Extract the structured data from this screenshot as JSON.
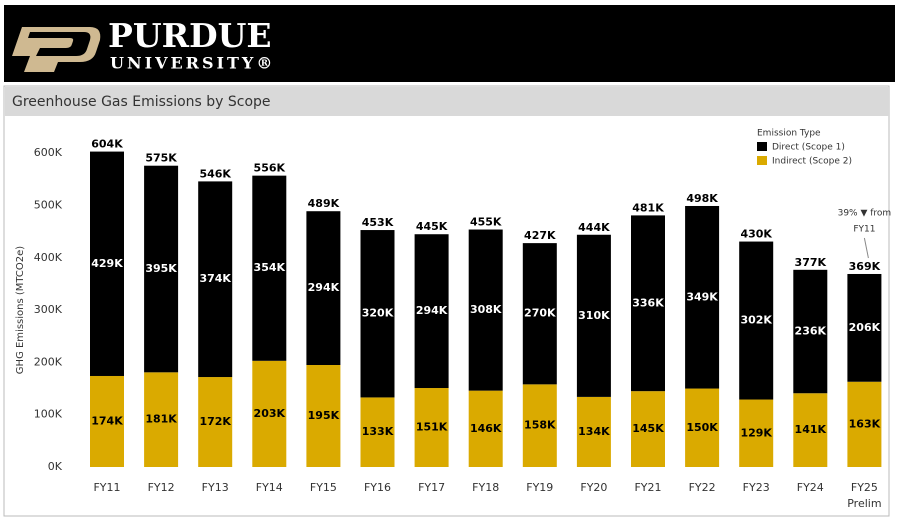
{
  "header": {
    "name": "PURDUE",
    "sub": "UNIVERSITY®"
  },
  "chart_data": {
    "type": "bar",
    "stacked": true,
    "title": "Greenhouse Gas Emissions by Scope",
    "y_label": "GHG Emissions (MTCO2e)",
    "legend_title": "Emission Type",
    "categories": [
      "FY11",
      "FY12",
      "FY13",
      "FY14",
      "FY15",
      "FY16",
      "FY17",
      "FY18",
      "FY19",
      "FY20",
      "FY21",
      "FY22",
      "FY23",
      "FY24",
      "FY25"
    ],
    "x_sublabels": [
      null,
      null,
      null,
      null,
      null,
      null,
      null,
      null,
      null,
      null,
      null,
      null,
      null,
      null,
      "Prelim"
    ],
    "series": [
      {
        "name": "Direct (Scope 1)",
        "color": "#000000",
        "label_color": "#ffffff",
        "values": [
          429000,
          395000,
          374000,
          354000,
          294000,
          320000,
          294000,
          308000,
          270000,
          310000,
          336000,
          349000,
          302000,
          236000,
          206000
        ],
        "value_labels": [
          "429K",
          "395K",
          "374K",
          "354K",
          "294K",
          "320K",
          "294K",
          "308K",
          "270K",
          "310K",
          "336K",
          "349K",
          "302K",
          "236K",
          "206K"
        ]
      },
      {
        "name": "Indirect (Scope 2)",
        "color": "#daaa00",
        "label_color": "#000000",
        "values": [
          174000,
          181000,
          172000,
          203000,
          195000,
          133000,
          151000,
          146000,
          158000,
          134000,
          145000,
          150000,
          129000,
          141000,
          163000
        ],
        "value_labels": [
          "174K",
          "181K",
          "172K",
          "203K",
          "195K",
          "133K",
          "151K",
          "146K",
          "158K",
          "134K",
          "145K",
          "150K",
          "129K",
          "141K",
          "163K"
        ]
      }
    ],
    "totals": {
      "values": [
        604000,
        575000,
        546000,
        556000,
        489000,
        453000,
        445000,
        455000,
        427000,
        444000,
        481000,
        498000,
        430000,
        377000,
        369000
      ],
      "value_labels": [
        "604K",
        "575K",
        "546K",
        "556K",
        "489K",
        "453K",
        "445K",
        "455K",
        "427K",
        "444K",
        "481K",
        "498K",
        "430K",
        "377K",
        "369K"
      ]
    },
    "annotations": [
      "39% ▼ from",
      "FY11"
    ],
    "ylim": [
      0,
      650000
    ],
    "yticks": [
      {
        "value": 0,
        "label": "0K"
      },
      {
        "value": 100000,
        "label": "100K"
      },
      {
        "value": 200000,
        "label": "200K"
      },
      {
        "value": 300000,
        "label": "300K"
      },
      {
        "value": 400000,
        "label": "400K"
      },
      {
        "value": 500000,
        "label": "500K"
      },
      {
        "value": 600000,
        "label": "600K"
      }
    ],
    "grid": false,
    "legend": "top-right"
  }
}
